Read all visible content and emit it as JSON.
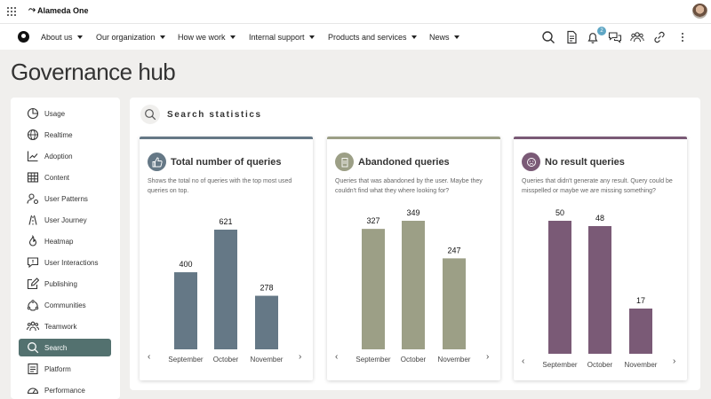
{
  "app": {
    "brand": "Alameda One"
  },
  "nav": {
    "items": [
      {
        "label": "About us"
      },
      {
        "label": "Our organization"
      },
      {
        "label": "How we work"
      },
      {
        "label": "Internal support"
      },
      {
        "label": "Products and services"
      },
      {
        "label": "News"
      }
    ],
    "notification_count": "2",
    "icons": [
      "search-icon",
      "document-icon",
      "bell-icon",
      "chat-icon",
      "people-icon",
      "link-icon",
      "more-vertical-icon"
    ]
  },
  "page": {
    "title": "Governance hub"
  },
  "sidebar": {
    "items": [
      {
        "label": "Usage",
        "icon": "pie-chart-icon"
      },
      {
        "label": "Realtime",
        "icon": "globe-icon"
      },
      {
        "label": "Adoption",
        "icon": "trend-icon"
      },
      {
        "label": "Content",
        "icon": "table-icon"
      },
      {
        "label": "User Patterns",
        "icon": "user-gear-icon"
      },
      {
        "label": "User Journey",
        "icon": "journey-icon"
      },
      {
        "label": "Heatmap",
        "icon": "flame-icon"
      },
      {
        "label": "User Interactions",
        "icon": "chat-bubble-icon"
      },
      {
        "label": "Publishing",
        "icon": "edit-icon"
      },
      {
        "label": "Communities",
        "icon": "communities-icon"
      },
      {
        "label": "Teamwork",
        "icon": "team-icon"
      },
      {
        "label": "Search",
        "icon": "search-icon",
        "active": true
      },
      {
        "label": "Platform",
        "icon": "platform-icon"
      },
      {
        "label": "Performance",
        "icon": "gauge-icon"
      }
    ]
  },
  "stats": {
    "title": "Search statistics"
  },
  "cards": [
    {
      "title": "Total number of queries",
      "description": "Shows the total no of queries with the top most used queries on top.",
      "icon": "thumbs-up-icon",
      "color": "#657886"
    },
    {
      "title": "Abandoned queries",
      "description": "Queries that was abandoned by the user. Maybe they couldn't find what they where looking for?",
      "icon": "building-icon",
      "color": "#9c9f86"
    },
    {
      "title": "No result queries",
      "description": "Queries that didn't generate any result. Query could be misspelled or maybe we are missing something?",
      "icon": "sad-face-icon",
      "color": "#7a5a76"
    }
  ],
  "chart_data": [
    {
      "type": "bar",
      "categories": [
        "September",
        "October",
        "November"
      ],
      "values": [
        400,
        621,
        278
      ],
      "title": "Total number of queries"
    },
    {
      "type": "bar",
      "categories": [
        "September",
        "October",
        "November"
      ],
      "values": [
        327,
        349,
        247
      ],
      "title": "Abandoned queries"
    },
    {
      "type": "bar",
      "categories": [
        "September",
        "October",
        "November"
      ],
      "values": [
        50,
        48,
        17
      ],
      "title": "No result queries"
    }
  ]
}
